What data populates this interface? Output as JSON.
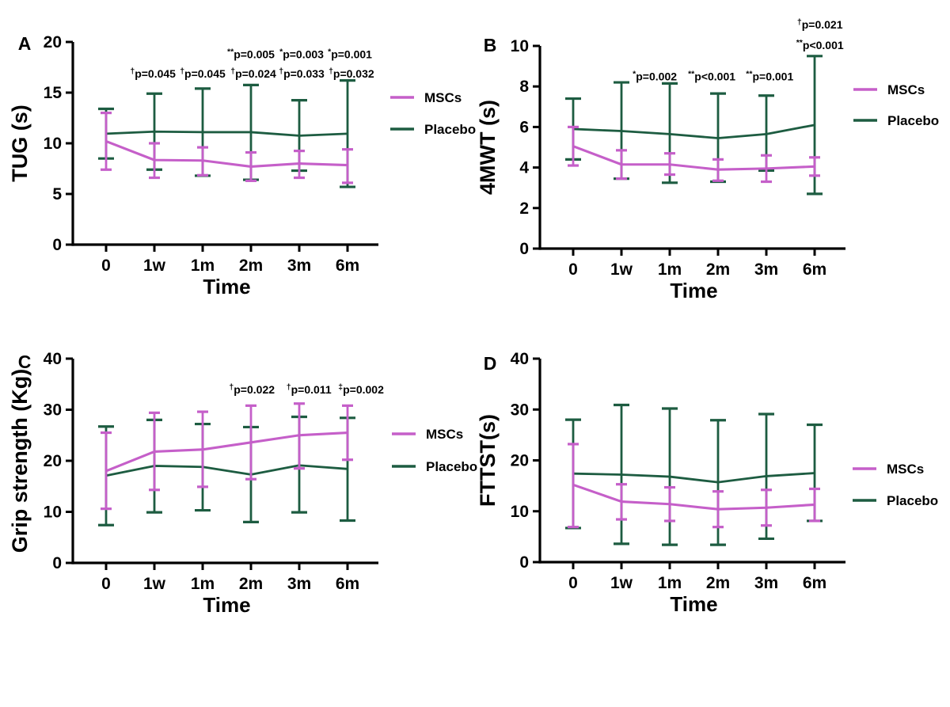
{
  "figure": {
    "background": "#ffffff",
    "x_axis_label": "Time",
    "x_categories": [
      "0",
      "1w",
      "1m",
      "2m",
      "3m",
      "6m"
    ]
  },
  "colors": {
    "mscs": "#C55FC9",
    "placebo": "#1D5C41",
    "axis": "#000000",
    "text": "#000000"
  },
  "legend": {
    "mscs_label": "MSCs",
    "placebo_label": "Placebo"
  },
  "chart_data": [
    {
      "panel": "A",
      "type": "line",
      "ylabel": "TUG (s)",
      "xlabel": "Time",
      "ylim": [
        0,
        20
      ],
      "yticks": [
        0,
        5,
        10,
        15,
        20
      ],
      "categories": [
        "0",
        "1w",
        "1m",
        "2m",
        "3m",
        "6m"
      ],
      "legend_position": "right",
      "grid": false,
      "series": [
        {
          "name": "MSCs",
          "color_key": "mscs",
          "values": [
            10.2,
            8.35,
            8.3,
            7.7,
            8.0,
            7.85
          ],
          "err_low": [
            7.4,
            6.6,
            6.85,
            6.3,
            6.6,
            6.1
          ],
          "err_high": [
            13.0,
            10.0,
            9.6,
            9.1,
            9.25,
            9.4
          ]
        },
        {
          "name": "Placebo",
          "color_key": "placebo",
          "values": [
            10.95,
            11.15,
            11.1,
            11.1,
            10.75,
            10.95
          ],
          "err_low": [
            8.5,
            7.4,
            6.8,
            6.4,
            7.3,
            5.7
          ],
          "err_high": [
            13.4,
            14.9,
            15.4,
            15.75,
            14.25,
            16.2
          ]
        }
      ],
      "annotations": [
        {
          "x": 3.0,
          "y": 18.4,
          "text": "**p=0.005"
        },
        {
          "x": 4.05,
          "y": 18.4,
          "text": "*p=0.003"
        },
        {
          "x": 5.05,
          "y": 18.4,
          "text": "*p=0.001"
        },
        {
          "x": 0.97,
          "y": 16.5,
          "text": "†p=0.045"
        },
        {
          "x": 2.0,
          "y": 16.5,
          "text": "†p=0.045"
        },
        {
          "x": 3.05,
          "y": 16.5,
          "text": "†p=0.024"
        },
        {
          "x": 4.05,
          "y": 16.5,
          "text": "†p=0.033"
        },
        {
          "x": 5.08,
          "y": 16.5,
          "text": "†p=0.032"
        }
      ]
    },
    {
      "panel": "B",
      "type": "line",
      "ylabel": "4MWT (s)",
      "xlabel": "Time",
      "ylim": [
        0,
        10
      ],
      "yticks": [
        0,
        2,
        4,
        6,
        8,
        10
      ],
      "categories": [
        "0",
        "1w",
        "1m",
        "2m",
        "3m",
        "6m"
      ],
      "legend_position": "right",
      "grid": false,
      "series": [
        {
          "name": "MSCs",
          "color_key": "mscs",
          "values": [
            5.05,
            4.15,
            4.15,
            3.9,
            3.95,
            4.05
          ],
          "err_low": [
            4.1,
            3.45,
            3.65,
            3.35,
            3.3,
            3.6
          ],
          "err_high": [
            6.0,
            4.85,
            4.7,
            4.4,
            4.6,
            4.5
          ]
        },
        {
          "name": "Placebo",
          "color_key": "placebo",
          "values": [
            5.9,
            5.8,
            5.65,
            5.45,
            5.65,
            6.1
          ],
          "err_low": [
            4.4,
            3.45,
            3.25,
            3.3,
            3.85,
            2.7
          ],
          "err_high": [
            7.4,
            8.2,
            8.15,
            7.65,
            7.55,
            9.5
          ]
        }
      ],
      "annotations": [
        {
          "x": 1.69,
          "y": 8.3,
          "text": "*p=0.002"
        },
        {
          "x": 2.87,
          "y": 8.3,
          "text": "**p<0.001"
        },
        {
          "x": 4.07,
          "y": 8.3,
          "text": "**p=0.001"
        },
        {
          "x": 5.11,
          "y": 10.85,
          "text": "†p=0.021"
        },
        {
          "x": 5.11,
          "y": 9.85,
          "text": "**p<0.001"
        }
      ]
    },
    {
      "panel": "C",
      "type": "line",
      "ylabel": "Grip strength (Kg)",
      "xlabel": "Time",
      "ylim": [
        0,
        40
      ],
      "yticks": [
        0,
        10,
        20,
        30,
        40
      ],
      "categories": [
        "0",
        "1w",
        "1m",
        "2m",
        "3m",
        "6m"
      ],
      "legend_position": "right",
      "grid": false,
      "series": [
        {
          "name": "MSCs",
          "color_key": "mscs",
          "values": [
            18.0,
            21.8,
            22.2,
            23.6,
            25.0,
            25.5
          ],
          "err_low": [
            10.6,
            14.3,
            14.9,
            16.4,
            18.5,
            20.2
          ],
          "err_high": [
            25.5,
            29.4,
            29.6,
            30.8,
            31.2,
            30.8
          ]
        },
        {
          "name": "Placebo",
          "color_key": "placebo",
          "values": [
            17.1,
            19.0,
            18.8,
            17.3,
            19.1,
            18.4
          ],
          "err_low": [
            7.4,
            9.9,
            10.3,
            8.0,
            9.9,
            8.3
          ],
          "err_high": [
            26.7,
            28.0,
            27.2,
            26.6,
            28.6,
            28.4
          ]
        }
      ],
      "annotations": [
        {
          "x": 3.02,
          "y": 33.2,
          "text": "†p=0.022"
        },
        {
          "x": 4.2,
          "y": 33.2,
          "text": "†p=0.011"
        },
        {
          "x": 5.28,
          "y": 33.2,
          "text": "‡p=0.002"
        }
      ]
    },
    {
      "panel": "D",
      "type": "line",
      "ylabel": "FTTST(s)",
      "xlabel": "Time",
      "ylim": [
        0,
        40
      ],
      "yticks": [
        0,
        10,
        20,
        30,
        40
      ],
      "categories": [
        "0",
        "1w",
        "1m",
        "2m",
        "3m",
        "6m"
      ],
      "legend_position": "right",
      "grid": false,
      "series": [
        {
          "name": "MSCs",
          "color_key": "mscs",
          "values": [
            15.2,
            11.9,
            11.4,
            10.4,
            10.7,
            11.3
          ],
          "err_low": [
            6.9,
            8.4,
            8.1,
            6.9,
            7.2,
            8.1
          ],
          "err_high": [
            23.2,
            15.3,
            14.7,
            13.9,
            14.2,
            14.4
          ]
        },
        {
          "name": "Placebo",
          "color_key": "placebo",
          "values": [
            17.4,
            17.2,
            16.8,
            15.7,
            16.9,
            17.5
          ],
          "err_low": [
            6.7,
            3.6,
            3.4,
            3.4,
            4.6,
            8.1
          ],
          "err_high": [
            28.0,
            30.9,
            30.2,
            27.9,
            29.1,
            27.0
          ]
        }
      ],
      "annotations": []
    }
  ]
}
